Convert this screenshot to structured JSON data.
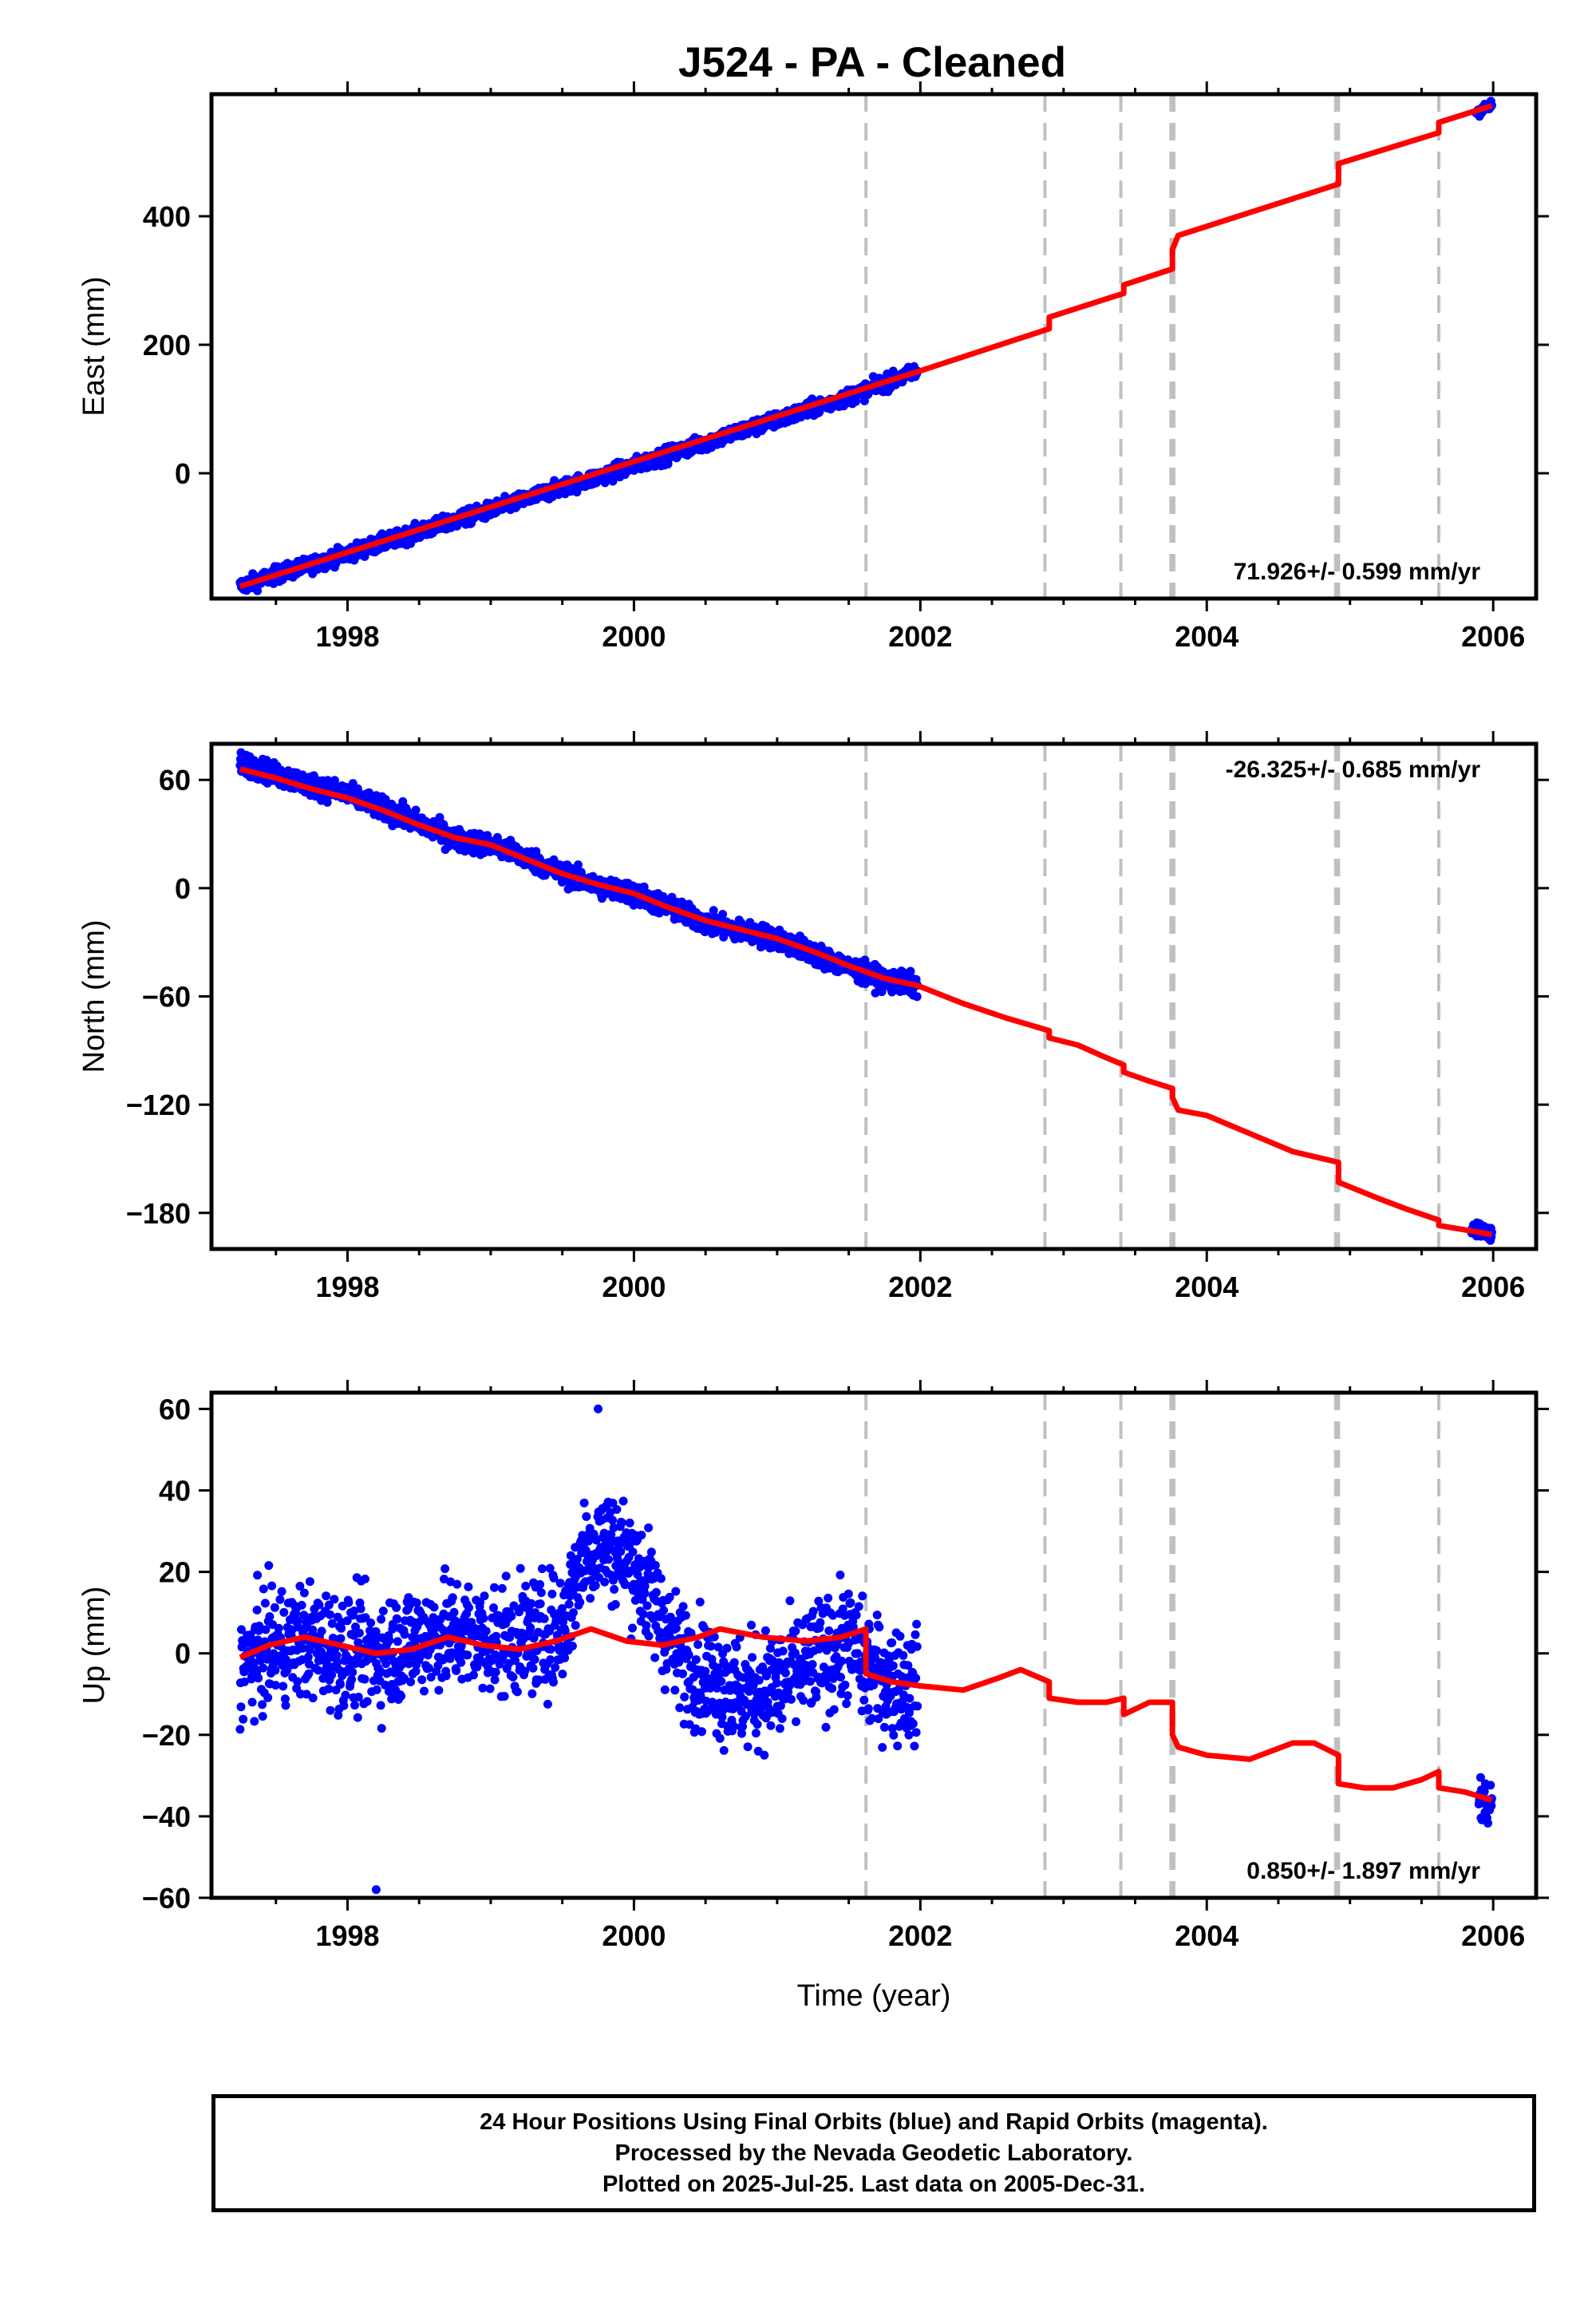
{
  "title": "J524  - PA - Cleaned",
  "colors": {
    "data": "#0000ff",
    "model": "#ff0000",
    "steps": "#c0c0c0",
    "frame": "#000000"
  },
  "chart_data": [
    {
      "type": "scatter",
      "component": "east",
      "ylabel": "East (mm)",
      "xlabel": "",
      "xlim": [
        1997.05,
        2006.3
      ],
      "ylim": [
        -195,
        590
      ],
      "yticks": [
        0,
        200,
        400
      ],
      "xticks": [
        1998,
        2000,
        2002,
        2004,
        2006
      ],
      "rate_text": "71.926+/- 0.599 mm/yr",
      "rate_position": "bottom-right",
      "data_segments": [
        {
          "start": 1997.25,
          "end": 2001.98,
          "points": [
            [
              1997.25,
              -176
            ],
            [
              1997.5,
              -158
            ],
            [
              1997.75,
              -142
            ],
            [
              1998.0,
              -125
            ],
            [
              1998.25,
              -108
            ],
            [
              1998.5,
              -91
            ],
            [
              1998.75,
              -74
            ],
            [
              1999.0,
              -57
            ],
            [
              1999.25,
              -40
            ],
            [
              1999.5,
              -22
            ],
            [
              1999.75,
              -6
            ],
            [
              2000.0,
              12
            ],
            [
              2000.25,
              30
            ],
            [
              2000.5,
              48
            ],
            [
              2000.75,
              66
            ],
            [
              2001.0,
              83
            ],
            [
              2001.25,
              101
            ],
            [
              2001.5,
              119
            ],
            [
              2001.75,
              140
            ],
            [
              2001.98,
              158
            ]
          ],
          "scatter": 6
        },
        {
          "start": 2005.88,
          "end": 2005.99,
          "points": [
            [
              2005.88,
              562
            ],
            [
              2005.99,
              572
            ]
          ],
          "scatter": 4
        }
      ],
      "model": [
        [
          1997.25,
          -176
        ],
        [
          2001.98,
          158
        ],
        [
          2002.9,
          225
        ],
        [
          2002.9,
          243
        ],
        [
          2003.42,
          280
        ],
        [
          2003.42,
          293
        ],
        [
          2003.76,
          318
        ],
        [
          2003.76,
          348
        ],
        [
          2003.8,
          370
        ],
        [
          2004.92,
          450
        ],
        [
          2004.92,
          482
        ],
        [
          2005.62,
          530
        ],
        [
          2005.62,
          546
        ],
        [
          2005.99,
          572
        ]
      ]
    },
    {
      "type": "scatter",
      "component": "north",
      "ylabel": "North (mm)",
      "xlabel": "",
      "xlim": [
        1997.05,
        2006.3
      ],
      "ylim": [
        -200,
        80
      ],
      "yticks": [
        -180,
        -120,
        -60,
        0,
        60
      ],
      "xticks": [
        1998,
        2000,
        2002,
        2004,
        2006
      ],
      "rate_text": "-26.325+/- 0.685 mm/yr",
      "rate_position": "top-right",
      "data_segments": [
        {
          "start": 1997.25,
          "end": 2001.98,
          "points": [
            [
              1997.25,
              70
            ],
            [
              1997.5,
              63
            ],
            [
              1997.75,
              57
            ],
            [
              1998.0,
              52
            ],
            [
              1998.25,
              44
            ],
            [
              1998.5,
              36
            ],
            [
              1998.75,
              27
            ],
            [
              1999.0,
              24
            ],
            [
              1999.25,
              17
            ],
            [
              1999.5,
              8
            ],
            [
              1999.75,
              1
            ],
            [
              2000.0,
              -3
            ],
            [
              2000.25,
              -11
            ],
            [
              2000.5,
              -19
            ],
            [
              2000.75,
              -24
            ],
            [
              2001.0,
              -28
            ],
            [
              2001.25,
              -36
            ],
            [
              2001.5,
              -44
            ],
            [
              2001.75,
              -51
            ],
            [
              2001.98,
              -54
            ]
          ],
          "scatter": 3
        },
        {
          "start": 2005.85,
          "end": 2005.99,
          "points": [
            [
              2005.85,
              -189
            ],
            [
              2005.99,
              -192
            ]
          ],
          "scatter": 2
        }
      ],
      "model": [
        [
          1997.25,
          66
        ],
        [
          1997.5,
          61
        ],
        [
          1997.75,
          55
        ],
        [
          1998.0,
          50
        ],
        [
          1998.25,
          43
        ],
        [
          1998.5,
          35
        ],
        [
          1998.75,
          28
        ],
        [
          1999.0,
          24
        ],
        [
          1999.25,
          16
        ],
        [
          1999.5,
          8
        ],
        [
          1999.75,
          2
        ],
        [
          2000.0,
          -3
        ],
        [
          2000.25,
          -11
        ],
        [
          2000.5,
          -18
        ],
        [
          2000.75,
          -23
        ],
        [
          2001.0,
          -28
        ],
        [
          2001.25,
          -35
        ],
        [
          2001.5,
          -43
        ],
        [
          2001.75,
          -50
        ],
        [
          2001.98,
          -54
        ],
        [
          2002.3,
          -64
        ],
        [
          2002.6,
          -72
        ],
        [
          2002.9,
          -79
        ],
        [
          2002.9,
          -83
        ],
        [
          2003.1,
          -87
        ],
        [
          2003.3,
          -94
        ],
        [
          2003.42,
          -98
        ],
        [
          2003.42,
          -102
        ],
        [
          2003.6,
          -107
        ],
        [
          2003.76,
          -111
        ],
        [
          2003.76,
          -116
        ],
        [
          2003.8,
          -123
        ],
        [
          2004.0,
          -126
        ],
        [
          2004.3,
          -136
        ],
        [
          2004.6,
          -146
        ],
        [
          2004.92,
          -152
        ],
        [
          2004.92,
          -163
        ],
        [
          2005.2,
          -172
        ],
        [
          2005.4,
          -178
        ],
        [
          2005.62,
          -184
        ],
        [
          2005.62,
          -187
        ],
        [
          2005.85,
          -190
        ],
        [
          2005.99,
          -192
        ]
      ]
    },
    {
      "type": "scatter",
      "component": "up",
      "ylabel": "Up (mm)",
      "xlabel": "Time (year)",
      "xlim": [
        1997.05,
        2006.3
      ],
      "ylim": [
        -60,
        64
      ],
      "yticks": [
        -60,
        -40,
        -20,
        0,
        20,
        40,
        60
      ],
      "xticks": [
        1998,
        2000,
        2002,
        2004,
        2006
      ],
      "rate_text": "0.850+/- 1.897 mm/yr",
      "rate_position": "bottom-right",
      "data_segments": [
        {
          "start": 1997.25,
          "end": 2001.98,
          "points": [
            [
              1997.25,
              -3
            ],
            [
              1997.5,
              2
            ],
            [
              1997.75,
              3
            ],
            [
              1998.0,
              0
            ],
            [
              1998.25,
              0
            ],
            [
              1998.5,
              4
            ],
            [
              1998.75,
              5
            ],
            [
              1999.0,
              3
            ],
            [
              1999.25,
              4
            ],
            [
              1999.5,
              6
            ],
            [
              1999.65,
              25
            ],
            [
              1999.8,
              28
            ],
            [
              2000.0,
              22
            ],
            [
              2000.15,
              12
            ],
            [
              2000.3,
              0
            ],
            [
              2000.5,
              -5
            ],
            [
              2000.75,
              -10
            ],
            [
              2001.0,
              -8
            ],
            [
              2001.25,
              -2
            ],
            [
              2001.5,
              3
            ],
            [
              2001.65,
              -5
            ],
            [
              2001.98,
              -9
            ]
          ],
          "scatter": 7
        },
        {
          "start": 2005.9,
          "end": 2005.99,
          "points": [
            [
              2005.9,
              -35
            ],
            [
              2005.99,
              -37
            ]
          ],
          "scatter": 3
        }
      ],
      "outliers": [
        [
          1999.75,
          60
        ],
        [
          1998.2,
          -58
        ]
      ],
      "model": [
        [
          1997.25,
          -1
        ],
        [
          1997.45,
          2
        ],
        [
          1997.7,
          4
        ],
        [
          1997.95,
          2
        ],
        [
          1998.2,
          0
        ],
        [
          1998.45,
          1
        ],
        [
          1998.7,
          4
        ],
        [
          1998.95,
          2
        ],
        [
          1999.2,
          1
        ],
        [
          1999.45,
          3
        ],
        [
          1999.7,
          6
        ],
        [
          1999.95,
          3
        ],
        [
          2000.2,
          2
        ],
        [
          2000.45,
          4
        ],
        [
          2000.6,
          6
        ],
        [
          2000.9,
          4
        ],
        [
          2001.2,
          3
        ],
        [
          2001.45,
          4
        ],
        [
          2001.62,
          6
        ],
        [
          2001.62,
          -5
        ],
        [
          2001.8,
          -7
        ],
        [
          2002.0,
          -8
        ],
        [
          2002.3,
          -9
        ],
        [
          2002.55,
          -6
        ],
        [
          2002.7,
          -4
        ],
        [
          2002.9,
          -7
        ],
        [
          2002.9,
          -11
        ],
        [
          2003.1,
          -12
        ],
        [
          2003.3,
          -12
        ],
        [
          2003.42,
          -11
        ],
        [
          2003.42,
          -15
        ],
        [
          2003.6,
          -12
        ],
        [
          2003.76,
          -12
        ],
        [
          2003.76,
          -20
        ],
        [
          2003.8,
          -23
        ],
        [
          2004.0,
          -25
        ],
        [
          2004.3,
          -26
        ],
        [
          2004.6,
          -22
        ],
        [
          2004.75,
          -22
        ],
        [
          2004.92,
          -25
        ],
        [
          2004.92,
          -32
        ],
        [
          2005.1,
          -33
        ],
        [
          2005.3,
          -33
        ],
        [
          2005.5,
          -31
        ],
        [
          2005.62,
          -29
        ],
        [
          2005.62,
          -33
        ],
        [
          2005.8,
          -34
        ],
        [
          2005.99,
          -36
        ]
      ]
    }
  ],
  "step_epochs": [
    2001.62,
    2002.87,
    2003.4,
    2003.75,
    2003.77,
    2004.9,
    2004.92,
    2005.62
  ],
  "notes": [
    "24 Hour Positions Using Final Orbits (blue) and Rapid Orbits (magenta).",
    "Processed by the Nevada Geodetic Laboratory.",
    "Plotted on 2025-Jul-25. Last data on 2005-Dec-31."
  ]
}
